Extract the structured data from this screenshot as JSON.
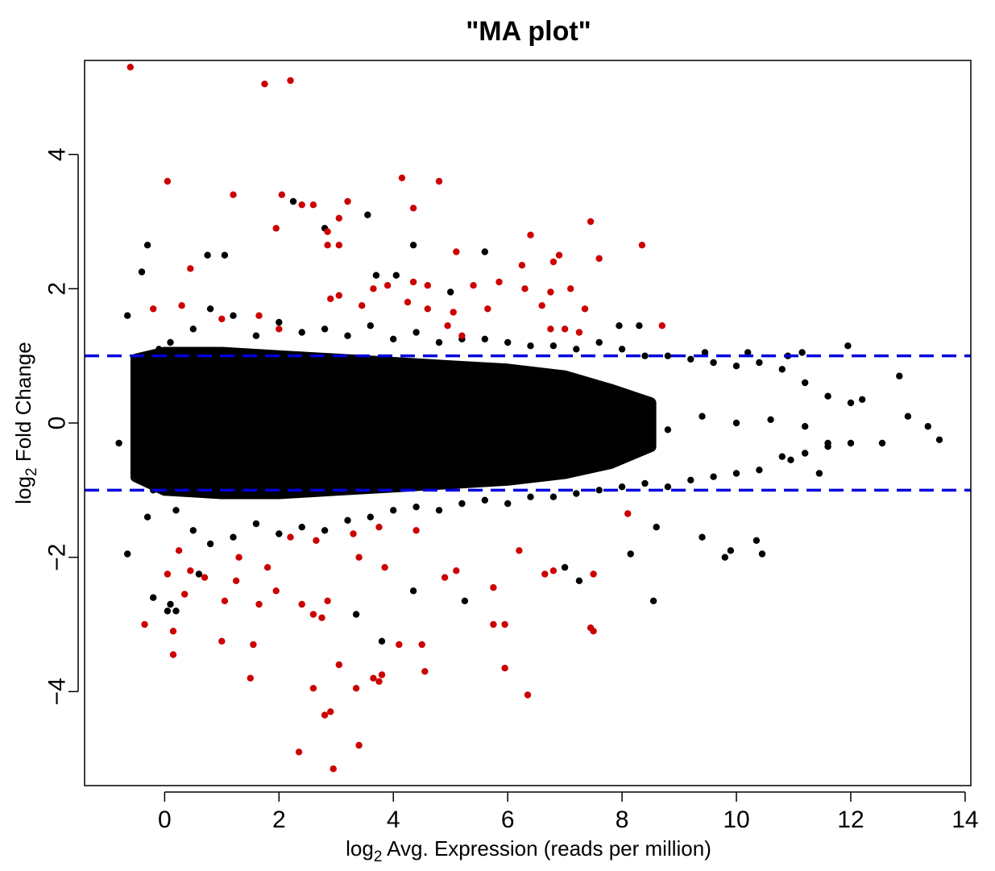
{
  "chart_data": {
    "type": "scatter",
    "title": "\"MA plot\"",
    "xlabel": {
      "prefix": "log",
      "sub": "2",
      "suffix": " Avg. Expression (reads per million)"
    },
    "ylabel": {
      "prefix": "log",
      "sub": "2",
      "suffix": " Fold Change"
    },
    "xlim": [
      -1.4,
      14.1
    ],
    "ylim": [
      -5.4,
      5.4
    ],
    "x_ticks": [
      0,
      2,
      4,
      6,
      8,
      10,
      12,
      14
    ],
    "y_ticks": [
      -4,
      -2,
      0,
      2,
      4
    ],
    "x_tick_labels": [
      "0",
      "2",
      "4",
      "6",
      "8",
      "10",
      "12",
      "14"
    ],
    "y_tick_labels": [
      "−4",
      "−2",
      "0",
      "2",
      "4"
    ],
    "grid": false,
    "thresholds": [
      1,
      -1
    ],
    "colors": {
      "not_significant": "#000000",
      "significant": "#cc0000",
      "threshold": "#0000dd"
    },
    "series": [
      {
        "key": "significant",
        "points": [
          [
            -0.6,
            5.3
          ],
          [
            1.75,
            5.05
          ],
          [
            2.2,
            5.1
          ],
          [
            0.05,
            3.6
          ],
          [
            1.2,
            3.4
          ],
          [
            2.05,
            3.4
          ],
          [
            2.4,
            3.25
          ],
          [
            2.6,
            3.25
          ],
          [
            1.95,
            2.9
          ],
          [
            3.2,
            3.3
          ],
          [
            3.05,
            3.05
          ],
          [
            2.85,
            2.85
          ],
          [
            2.85,
            2.65
          ],
          [
            3.05,
            2.65
          ],
          [
            4.15,
            3.65
          ],
          [
            4.8,
            3.6
          ],
          [
            4.35,
            3.2
          ],
          [
            7.45,
            3.0
          ],
          [
            6.4,
            2.8
          ],
          [
            8.35,
            2.65
          ],
          [
            5.1,
            2.55
          ],
          [
            6.9,
            2.5
          ],
          [
            6.8,
            2.4
          ],
          [
            7.6,
            2.45
          ],
          [
            6.25,
            2.35
          ],
          [
            0.45,
            2.3
          ],
          [
            3.65,
            2.0
          ],
          [
            3.9,
            2.05
          ],
          [
            4.35,
            2.1
          ],
          [
            4.6,
            2.05
          ],
          [
            5.4,
            2.05
          ],
          [
            5.85,
            2.1
          ],
          [
            6.3,
            2.0
          ],
          [
            7.1,
            2.0
          ],
          [
            6.75,
            1.95
          ],
          [
            2.9,
            1.85
          ],
          [
            3.05,
            1.9
          ],
          [
            3.45,
            1.75
          ],
          [
            4.25,
            1.8
          ],
          [
            4.6,
            1.7
          ],
          [
            5.05,
            1.65
          ],
          [
            5.65,
            1.7
          ],
          [
            6.6,
            1.75
          ],
          [
            7.35,
            1.7
          ],
          [
            4.95,
            1.45
          ],
          [
            5.2,
            1.3
          ],
          [
            6.75,
            1.4
          ],
          [
            7.0,
            1.4
          ],
          [
            7.25,
            1.35
          ],
          [
            8.7,
            1.45
          ],
          [
            1.65,
            1.6
          ],
          [
            2.0,
            1.4
          ],
          [
            0.3,
            1.75
          ],
          [
            -0.2,
            1.7
          ],
          [
            1.0,
            1.55
          ],
          [
            -0.35,
            -3.0
          ],
          [
            0.15,
            -3.1
          ],
          [
            0.15,
            -3.45
          ],
          [
            1.0,
            -3.25
          ],
          [
            1.55,
            -3.3
          ],
          [
            1.5,
            -3.8
          ],
          [
            0.35,
            -2.55
          ],
          [
            1.05,
            -2.65
          ],
          [
            0.05,
            -2.25
          ],
          [
            0.45,
            -2.2
          ],
          [
            1.25,
            -2.35
          ],
          [
            1.95,
            -2.5
          ],
          [
            2.4,
            -2.7
          ],
          [
            2.6,
            -2.85
          ],
          [
            2.85,
            -2.65
          ],
          [
            2.75,
            -2.9
          ],
          [
            2.6,
            -3.95
          ],
          [
            3.05,
            -3.6
          ],
          [
            3.35,
            -3.95
          ],
          [
            2.35,
            -4.9
          ],
          [
            2.8,
            -4.35
          ],
          [
            2.9,
            -4.3
          ],
          [
            2.95,
            -5.15
          ],
          [
            3.4,
            -4.8
          ],
          [
            3.8,
            -3.75
          ],
          [
            3.75,
            -3.85
          ],
          [
            3.65,
            -3.8
          ],
          [
            4.1,
            -3.3
          ],
          [
            4.5,
            -3.3
          ],
          [
            4.55,
            -3.7
          ],
          [
            5.75,
            -3.0
          ],
          [
            5.95,
            -3.65
          ],
          [
            5.95,
            -3.0
          ],
          [
            6.35,
            -4.05
          ],
          [
            7.45,
            -3.05
          ],
          [
            7.5,
            -3.1
          ],
          [
            7.5,
            -2.25
          ],
          [
            6.65,
            -2.25
          ],
          [
            6.8,
            -2.2
          ],
          [
            8.1,
            -1.35
          ],
          [
            6.2,
            -1.9
          ],
          [
            5.75,
            -2.45
          ],
          [
            5.1,
            -2.2
          ],
          [
            4.9,
            -2.3
          ],
          [
            3.85,
            -2.15
          ],
          [
            3.4,
            -2.0
          ],
          [
            1.65,
            -2.7
          ],
          [
            1.8,
            -2.15
          ],
          [
            2.2,
            -1.7
          ],
          [
            2.65,
            -1.75
          ],
          [
            3.3,
            -1.65
          ],
          [
            3.75,
            -1.55
          ],
          [
            4.4,
            -1.6
          ],
          [
            1.3,
            -2.0
          ],
          [
            0.7,
            -2.3
          ],
          [
            0.25,
            -1.9
          ]
        ]
      },
      {
        "key": "not_significant",
        "points": [
          [
            -0.8,
            -0.3
          ],
          [
            -0.65,
            1.6
          ],
          [
            -0.3,
            2.65
          ],
          [
            -0.4,
            2.25
          ],
          [
            0.1,
            -2.7
          ],
          [
            -0.2,
            -2.6
          ],
          [
            0.2,
            -2.8
          ],
          [
            -0.65,
            -1.95
          ],
          [
            2.25,
            3.3
          ],
          [
            2.8,
            2.9
          ],
          [
            3.55,
            3.1
          ],
          [
            4.35,
            2.65
          ],
          [
            5.6,
            2.55
          ],
          [
            0.75,
            2.5
          ],
          [
            1.05,
            2.5
          ],
          [
            3.7,
            2.2
          ],
          [
            4.05,
            2.2
          ],
          [
            5.0,
            1.95
          ],
          [
            7.95,
            1.45
          ],
          [
            8.3,
            1.45
          ],
          [
            9.45,
            1.05
          ],
          [
            10.2,
            1.05
          ],
          [
            10.9,
            1.0
          ],
          [
            11.15,
            1.05
          ],
          [
            11.95,
            1.15
          ],
          [
            12.85,
            0.7
          ],
          [
            12.2,
            0.35
          ],
          [
            13.0,
            0.1
          ],
          [
            13.35,
            -0.05
          ],
          [
            13.55,
            -0.25
          ],
          [
            12.55,
            -0.3
          ],
          [
            11.6,
            -0.3
          ],
          [
            11.45,
            -0.75
          ],
          [
            10.95,
            -0.55
          ],
          [
            10.35,
            -1.75
          ],
          [
            10.45,
            -1.95
          ],
          [
            9.8,
            -2.0
          ],
          [
            9.9,
            -1.9
          ],
          [
            8.55,
            -2.65
          ],
          [
            8.15,
            -1.95
          ],
          [
            8.6,
            -1.55
          ],
          [
            9.4,
            -1.7
          ],
          [
            7.0,
            -2.15
          ],
          [
            7.25,
            -2.35
          ],
          [
            5.25,
            -2.65
          ],
          [
            4.35,
            -2.5
          ],
          [
            3.35,
            -2.85
          ],
          [
            3.8,
            -3.25
          ],
          [
            0.6,
            -2.25
          ],
          [
            0.05,
            -2.8
          ],
          [
            0.5,
            1.4
          ],
          [
            0.8,
            1.7
          ],
          [
            1.2,
            1.6
          ],
          [
            1.6,
            1.3
          ],
          [
            2.0,
            1.5
          ],
          [
            2.4,
            1.35
          ],
          [
            2.8,
            1.4
          ],
          [
            3.2,
            1.3
          ],
          [
            3.6,
            1.45
          ],
          [
            4.0,
            1.25
          ],
          [
            4.4,
            1.35
          ],
          [
            4.8,
            1.2
          ],
          [
            5.2,
            1.25
          ],
          [
            5.6,
            1.25
          ],
          [
            6.0,
            1.2
          ],
          [
            6.4,
            1.15
          ],
          [
            6.8,
            1.15
          ],
          [
            7.2,
            1.1
          ],
          [
            7.6,
            1.2
          ],
          [
            8.0,
            1.1
          ],
          [
            8.4,
            1.0
          ],
          [
            8.8,
            1.0
          ],
          [
            9.2,
            0.95
          ],
          [
            9.6,
            0.9
          ],
          [
            10.0,
            0.85
          ],
          [
            10.4,
            0.9
          ],
          [
            10.8,
            0.8
          ],
          [
            11.2,
            0.6
          ],
          [
            11.6,
            0.4
          ],
          [
            12.0,
            0.3
          ],
          [
            0.5,
            -1.6
          ],
          [
            0.8,
            -1.8
          ],
          [
            1.2,
            -1.7
          ],
          [
            1.6,
            -1.5
          ],
          [
            2.0,
            -1.65
          ],
          [
            2.4,
            -1.55
          ],
          [
            2.8,
            -1.6
          ],
          [
            3.2,
            -1.45
          ],
          [
            3.6,
            -1.4
          ],
          [
            4.0,
            -1.3
          ],
          [
            4.4,
            -1.25
          ],
          [
            4.8,
            -1.3
          ],
          [
            5.2,
            -1.2
          ],
          [
            5.6,
            -1.15
          ],
          [
            6.0,
            -1.2
          ],
          [
            6.4,
            -1.1
          ],
          [
            6.8,
            -1.1
          ],
          [
            7.2,
            -1.05
          ],
          [
            7.6,
            -1.0
          ],
          [
            8.0,
            -0.95
          ],
          [
            8.4,
            -0.9
          ],
          [
            8.8,
            -0.95
          ],
          [
            9.2,
            -0.85
          ],
          [
            9.6,
            -0.8
          ],
          [
            10.0,
            -0.75
          ],
          [
            10.4,
            -0.7
          ],
          [
            10.8,
            -0.5
          ],
          [
            11.2,
            -0.45
          ],
          [
            11.6,
            -0.35
          ],
          [
            12.0,
            -0.3
          ],
          [
            0.0,
            0.2
          ],
          [
            0.6,
            -0.2
          ],
          [
            1.0,
            0.3
          ],
          [
            1.6,
            -0.4
          ],
          [
            2.2,
            0.4
          ],
          [
            2.8,
            -0.3
          ],
          [
            3.4,
            0.5
          ],
          [
            4.0,
            -0.5
          ],
          [
            4.6,
            0.3
          ],
          [
            5.2,
            -0.3
          ],
          [
            5.8,
            0.4
          ],
          [
            6.4,
            -0.2
          ],
          [
            7.0,
            0.3
          ],
          [
            7.6,
            -0.2
          ],
          [
            8.2,
            0.2
          ],
          [
            8.8,
            -0.1
          ],
          [
            9.4,
            0.1
          ],
          [
            10.0,
            0.0
          ],
          [
            10.6,
            0.05
          ],
          [
            11.2,
            -0.05
          ],
          [
            -0.5,
            0.1
          ],
          [
            -0.4,
            -0.6
          ],
          [
            -0.3,
            0.8
          ],
          [
            -0.2,
            -1.0
          ],
          [
            -0.1,
            1.1
          ],
          [
            0.2,
            -1.3
          ],
          [
            0.1,
            1.2
          ],
          [
            -0.3,
            -1.4
          ]
        ]
      }
    ]
  }
}
